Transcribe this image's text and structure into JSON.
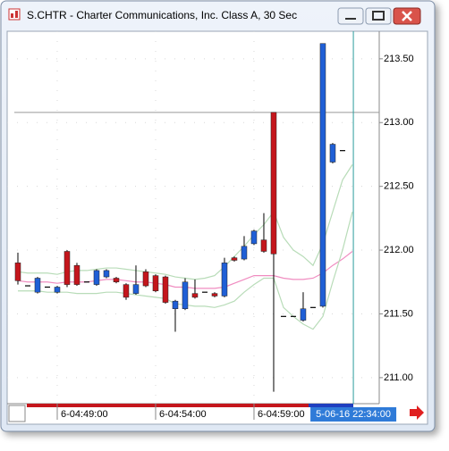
{
  "window": {
    "title": "S.CHTR - Charter Communications, Inc. Class A, 30 Sec"
  },
  "chart_data": {
    "type": "candlestick",
    "x": [
      0,
      1,
      2,
      3,
      4,
      5,
      6,
      7,
      8,
      9,
      10,
      11,
      12,
      13,
      14,
      15,
      16,
      17,
      18,
      19,
      20,
      21,
      22,
      23,
      24,
      25,
      26,
      27,
      28,
      29,
      30,
      31,
      32,
      33,
      34
    ],
    "open": [
      211.9,
      211.72,
      211.67,
      211.71,
      211.67,
      211.99,
      211.88,
      211.75,
      211.73,
      211.79,
      211.78,
      211.73,
      211.66,
      211.83,
      211.8,
      211.79,
      211.54,
      211.54,
      211.66,
      211.67,
      211.66,
      211.64,
      211.94,
      211.93,
      212.05,
      212.08,
      213.08,
      211.48,
      211.48,
      211.45,
      211.55,
      211.56,
      212.69,
      212.78,
      null
    ],
    "high": [
      211.98,
      211.72,
      211.79,
      211.71,
      211.72,
      212.0,
      211.9,
      211.75,
      211.85,
      211.85,
      211.79,
      211.74,
      211.88,
      211.85,
      211.81,
      211.8,
      211.61,
      211.78,
      211.77,
      211.67,
      211.67,
      211.94,
      211.95,
      212.11,
      212.16,
      212.29,
      213.08,
      211.48,
      211.48,
      211.67,
      211.55,
      213.62,
      212.84,
      212.78,
      null
    ],
    "low": [
      211.73,
      211.72,
      211.66,
      211.71,
      211.66,
      211.71,
      211.72,
      211.75,
      211.72,
      211.78,
      211.74,
      211.61,
      211.65,
      211.71,
      211.67,
      211.58,
      211.36,
      211.53,
      211.62,
      211.67,
      211.63,
      211.63,
      211.91,
      211.92,
      212.04,
      211.98,
      210.89,
      211.48,
      211.48,
      211.44,
      211.55,
      211.55,
      212.68,
      212.78,
      null
    ],
    "close": [
      211.76,
      211.72,
      211.78,
      211.71,
      211.71,
      211.73,
      211.73,
      211.75,
      211.84,
      211.84,
      211.75,
      211.63,
      211.73,
      211.72,
      211.68,
      211.59,
      211.6,
      211.75,
      211.63,
      211.67,
      211.64,
      211.9,
      211.92,
      212.03,
      212.15,
      211.99,
      211.97,
      211.48,
      211.48,
      211.54,
      211.55,
      213.62,
      212.83,
      212.78,
      null
    ],
    "up_color": "#1f5fd6",
    "down_color": "#c4161c",
    "flat_color": "#000000",
    "series": [
      {
        "color": "#f08cc0",
        "values": [
          211.76,
          211.75,
          211.75,
          211.75,
          211.74,
          211.75,
          211.75,
          211.75,
          211.76,
          211.77,
          211.77,
          211.76,
          211.75,
          211.75,
          211.74,
          211.73,
          211.71,
          211.71,
          211.7,
          211.7,
          211.7,
          211.71,
          211.74,
          211.77,
          211.8,
          211.8,
          211.8,
          211.78,
          211.77,
          211.77,
          211.78,
          211.82,
          211.88,
          211.93,
          211.99
        ]
      },
      {
        "color": "#b8dcb8",
        "values": [
          211.83,
          211.82,
          211.82,
          211.82,
          211.81,
          211.83,
          211.84,
          211.84,
          211.85,
          211.86,
          211.86,
          211.85,
          211.84,
          211.83,
          211.82,
          211.81,
          211.79,
          211.78,
          211.77,
          211.78,
          211.8,
          211.87,
          211.95,
          212.03,
          212.12,
          212.2,
          212.3,
          212.1,
          212.0,
          211.95,
          211.88,
          212.05,
          212.3,
          212.55,
          212.67
        ]
      },
      {
        "color": "#b8dcb8",
        "values": [
          211.68,
          211.68,
          211.68,
          211.67,
          211.67,
          211.67,
          211.66,
          211.66,
          211.66,
          211.67,
          211.67,
          211.66,
          211.65,
          211.64,
          211.63,
          211.62,
          211.58,
          211.57,
          211.56,
          211.56,
          211.55,
          211.57,
          211.6,
          211.67,
          211.73,
          211.78,
          211.78,
          211.55,
          211.48,
          211.42,
          211.38,
          211.48,
          211.75,
          212.0,
          212.3
        ]
      }
    ],
    "xlim": [
      -1.09,
      36.73
    ],
    "ylim": [
      210.796,
      213.716
    ],
    "xticks": [
      {
        "value": 4,
        "label": "6-04:49:00"
      },
      {
        "value": 14,
        "label": "6-04:54:00"
      },
      {
        "value": 24,
        "label": "6-04:59:00"
      }
    ],
    "yticks": [
      {
        "value": 211,
        "label": "211.00"
      },
      {
        "value": 211.5,
        "label": "211.50"
      },
      {
        "value": 212,
        "label": "212.00"
      },
      {
        "value": 212.5,
        "label": "212.50"
      },
      {
        "value": 213,
        "label": "213.00"
      },
      {
        "value": 213.5,
        "label": "213.50"
      }
    ],
    "grid": true,
    "hline": 213.08,
    "cursor_x": 34.1,
    "cursor_label": "5-06-16 22:34:00"
  }
}
